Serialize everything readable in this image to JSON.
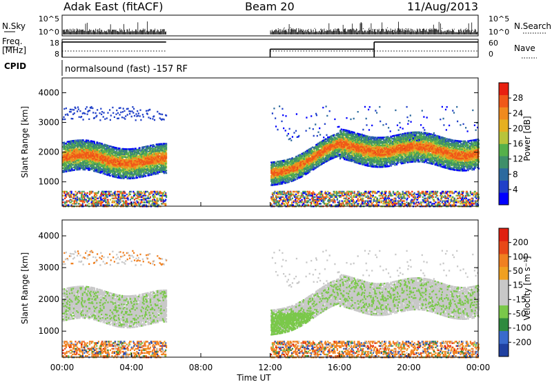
{
  "header": {
    "title": "Adak East (fitACF)",
    "beam": "Beam 20",
    "date": "11/Aug/2013"
  },
  "chart_data": {
    "type": "heatmap",
    "xlabel": "Time UT",
    "x_ticks": [
      "00:00",
      "04:00",
      "08:00",
      "12:00",
      "16:00",
      "20:00",
      "00:00"
    ],
    "xlim_hours": [
      0,
      24
    ],
    "data_gaps_hours": [
      [
        6,
        12
      ]
    ],
    "cpid_text": "normalsound (fast) -157 RF",
    "panels": {
      "noise": {
        "left_label": "N.Sky",
        "right_label": "N.Search",
        "left_ticks": [
          "10^5",
          "10^0"
        ],
        "right_ticks": [
          "10^5",
          "10^0"
        ]
      },
      "freq": {
        "left_label_1": "Freq.",
        "left_label_2": "[MHz]",
        "right_label": "Nave",
        "left_ticks": [
          "18",
          "8"
        ],
        "right_ticks": [
          "60",
          "0"
        ],
        "segments_hours": [
          [
            0,
            6
          ],
          [
            12,
            18
          ],
          [
            18,
            24
          ]
        ],
        "segment_levels": [
          0.85,
          0.45,
          0.85
        ]
      },
      "cpid_label": "CPID",
      "power": {
        "ylabel": "Slant Range [km]",
        "y_ticks": [
          "4000",
          "3000",
          "2000",
          "1000"
        ],
        "y_tick_values": [
          4000,
          3000,
          2000,
          1000
        ],
        "ylim": [
          180,
          4500
        ],
        "colorbar_label": "Power [dB]",
        "colorbar_ticks": [
          "28",
          "24",
          "20",
          "16",
          "12",
          "8",
          "4"
        ],
        "colorbar_colors": [
          "#0000ff",
          "#2040c8",
          "#2c6a9e",
          "#3f8f6a",
          "#56b04a",
          "#b8c43a",
          "#e6b020",
          "#f08a1e",
          "#f05818",
          "#e82010"
        ],
        "echo_bands": [
          {
            "t0": 0,
            "t1": 6,
            "center_start": 1850,
            "center_end": 1700,
            "width": 500
          },
          {
            "t0": 12,
            "t1": 16,
            "center_start": 1300,
            "center_end": 2200,
            "width": 400
          },
          {
            "t0": 16,
            "t1": 24,
            "center_start": 2200,
            "center_end": 2000,
            "width": 500
          }
        ]
      },
      "velocity": {
        "ylabel": "Slant Range [km]",
        "y_ticks": [
          "4000",
          "3000",
          "2000",
          "1000"
        ],
        "y_tick_values": [
          4000,
          3000,
          2000,
          1000
        ],
        "ylim": [
          180,
          4500
        ],
        "colorbar_label": "Velocity [m s⁻¹]",
        "colorbar_ticks": [
          "200",
          "100",
          "50",
          "15",
          "-15",
          "-50",
          "-100",
          "-200"
        ],
        "colorbar_colors": [
          "#2040a0",
          "#3a6acc",
          "#2f8a3e",
          "#7ac84a",
          "#c8c8c8",
          "#c8c8c8",
          "#f0a020",
          "#f08020",
          "#e84818",
          "#e02010"
        ]
      }
    }
  }
}
